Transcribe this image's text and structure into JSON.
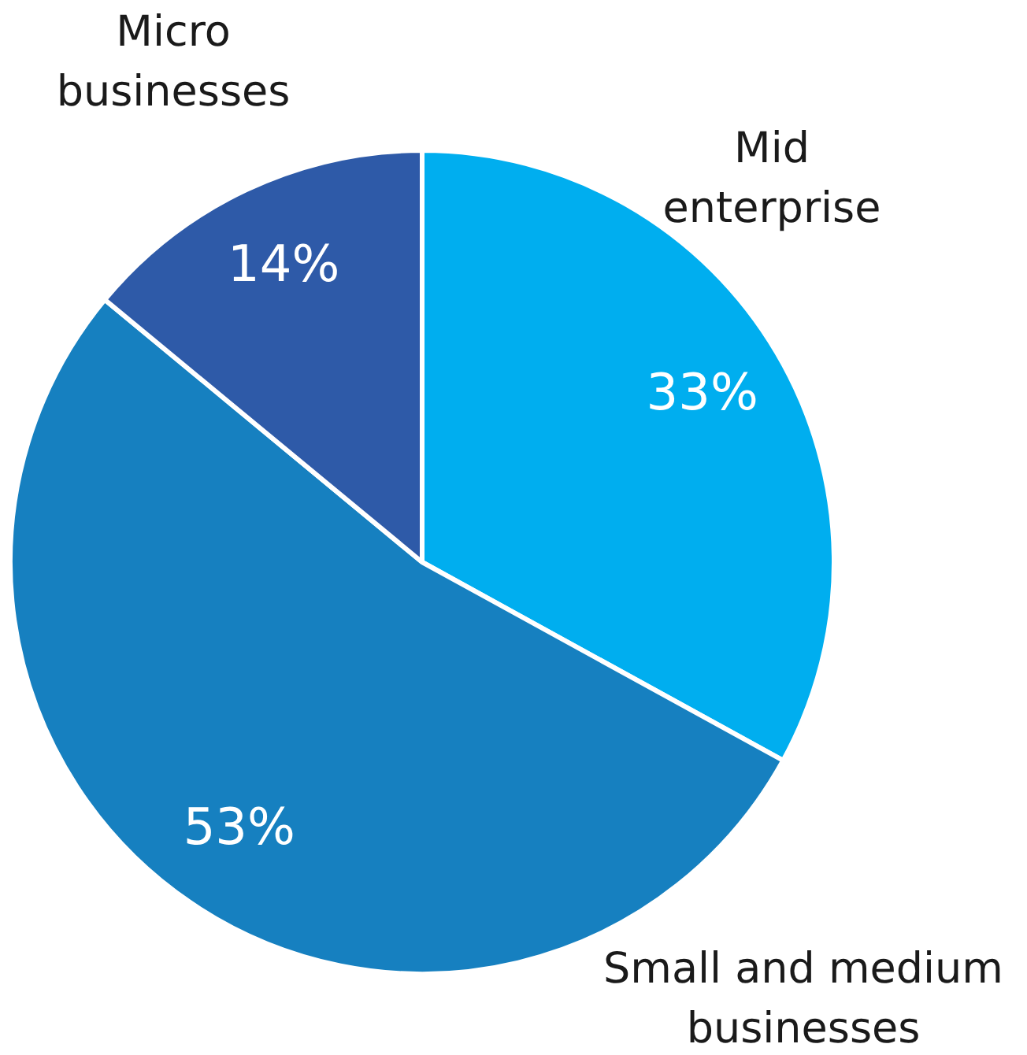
{
  "chart_data": {
    "type": "pie",
    "categories": [
      "Mid enterprise",
      "Small and medium businesses",
      "Micro businesses"
    ],
    "values": [
      33,
      53,
      14
    ],
    "colors": [
      "#00aeef",
      "#1680c0",
      "#2e5aa8"
    ],
    "value_labels": [
      "33%",
      "53%",
      "14%"
    ],
    "legend": false
  }
}
